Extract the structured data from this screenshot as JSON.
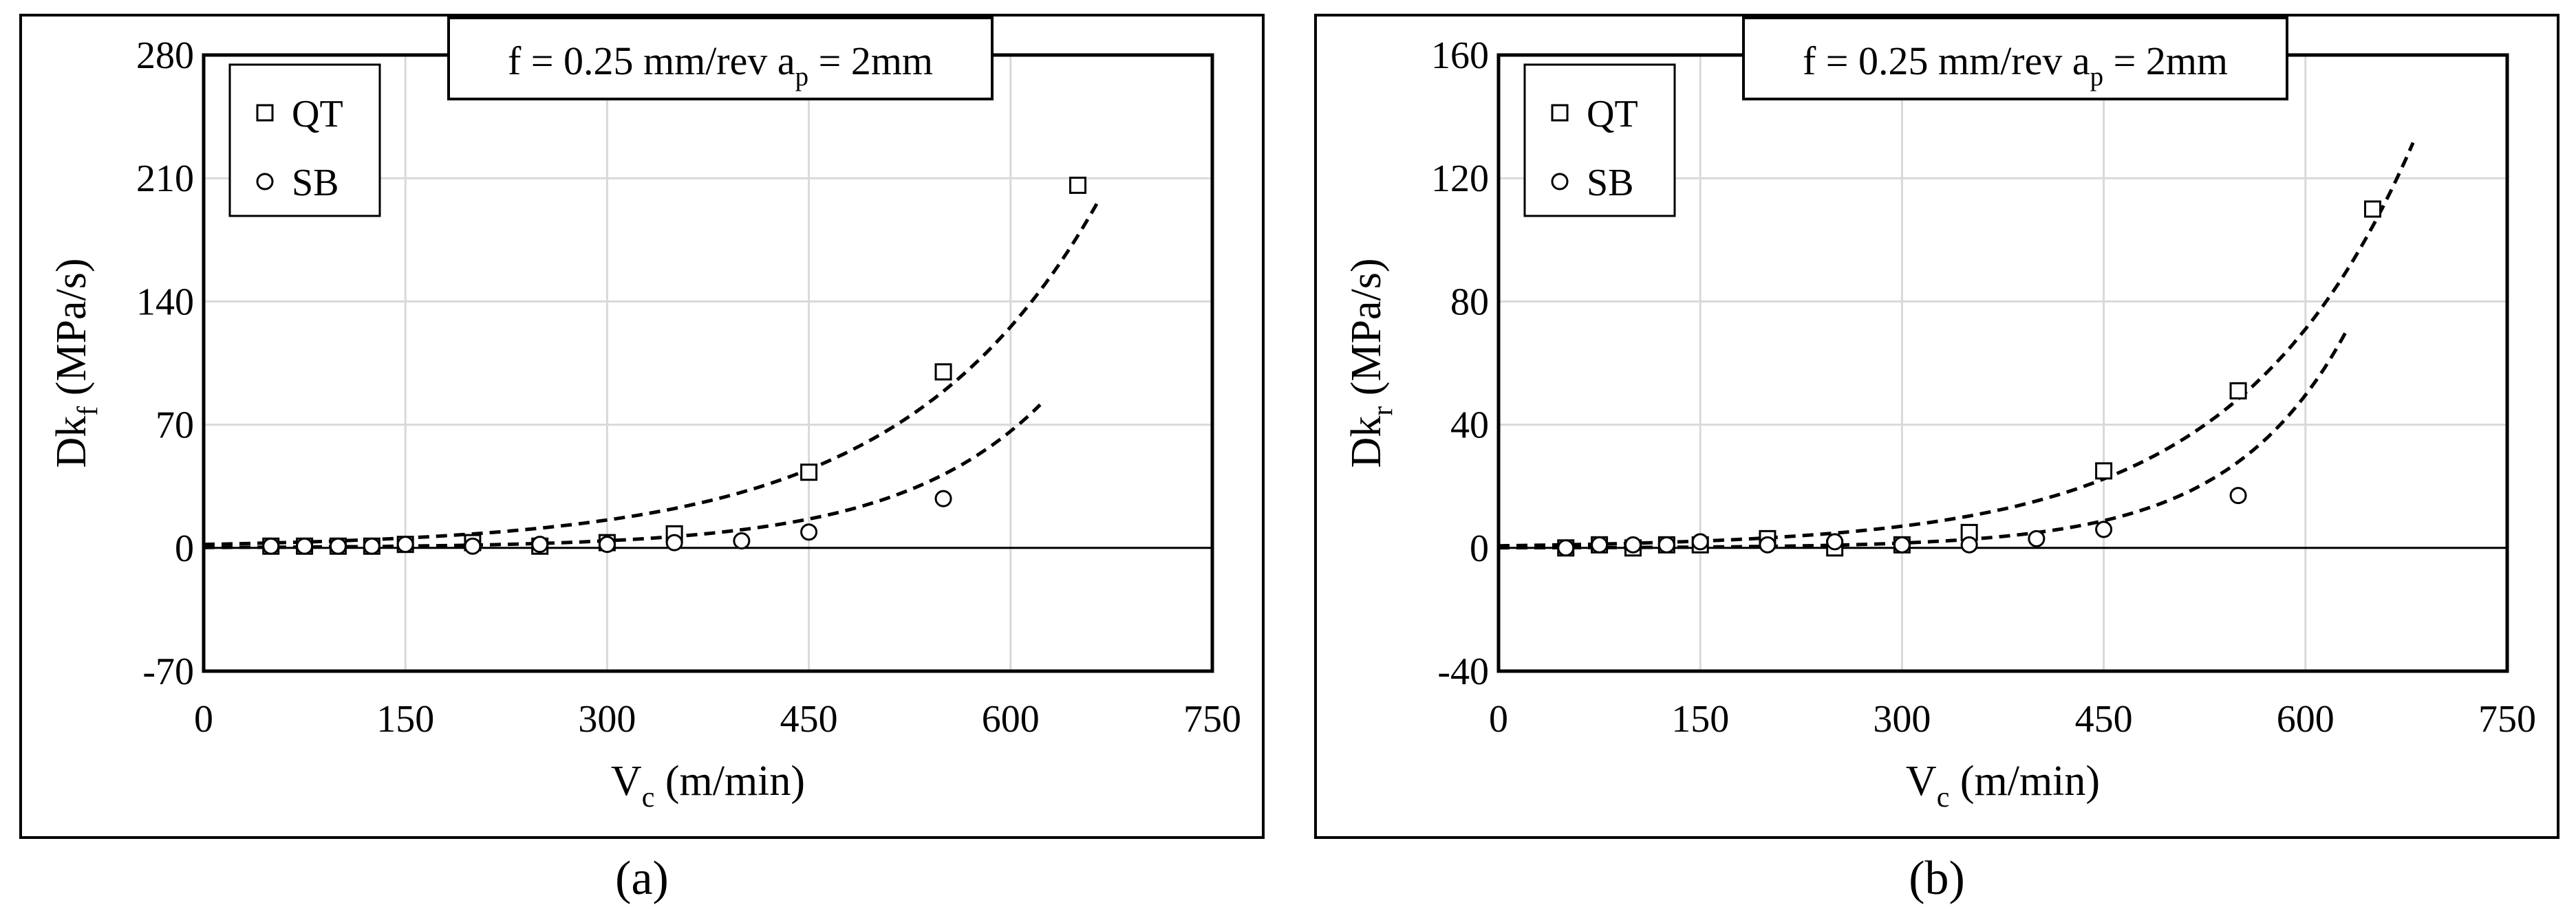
{
  "captions": [
    "(a)",
    "(b)"
  ],
  "chart_data": [
    {
      "type": "scatter",
      "title": "f = 0.25 mm/rev a",
      "title_sub": "p",
      "title_tail": " = 2mm",
      "xlabel": "V",
      "xlabel_sub": "c",
      "xlabel_tail": " (m/min)",
      "ylabel": "Dk",
      "ylabel_sub": "f",
      "ylabel_tail": " (MPa/s)",
      "xlim": [
        0,
        750
      ],
      "ylim": [
        -70,
        280
      ],
      "xticks": [
        "0",
        "150",
        "300",
        "450",
        "600",
        "750"
      ],
      "xtick_values": [
        0,
        150,
        300,
        450,
        600,
        750
      ],
      "yticks": [
        "280",
        "210",
        "140",
        "70",
        "0",
        "-70"
      ],
      "ytick_values": [
        280,
        210,
        140,
        70,
        0,
        -70
      ],
      "grid": true,
      "legend_position": "top-left",
      "series": [
        {
          "name": "QT",
          "marker": "square",
          "points": [
            [
              50,
              1
            ],
            [
              75,
              1
            ],
            [
              100,
              1
            ],
            [
              125,
              1
            ],
            [
              150,
              2
            ],
            [
              200,
              3
            ],
            [
              250,
              1
            ],
            [
              300,
              3
            ],
            [
              350,
              8
            ],
            [
              450,
              43
            ],
            [
              550,
              100
            ],
            [
              650,
              206
            ]
          ],
          "trend": {
            "a": 2.0,
            "b": 0.0069,
            "x0": 0,
            "x1": 665
          }
        },
        {
          "name": "SB",
          "marker": "circle",
          "points": [
            [
              50,
              1
            ],
            [
              75,
              1
            ],
            [
              100,
              1
            ],
            [
              125,
              1
            ],
            [
              150,
              2
            ],
            [
              200,
              1
            ],
            [
              250,
              2
            ],
            [
              300,
              2
            ],
            [
              350,
              3
            ],
            [
              400,
              4
            ],
            [
              450,
              9
            ],
            [
              550,
              28
            ]
          ],
          "trend": {
            "a": 0.25,
            "b": 0.0093,
            "x0": 0,
            "x1": 622
          }
        }
      ]
    },
    {
      "type": "scatter",
      "title": "f = 0.25 mm/rev a",
      "title_sub": "p",
      "title_tail": " = 2mm",
      "xlabel": "V",
      "xlabel_sub": "c",
      "xlabel_tail": " (m/min)",
      "ylabel": "Dk",
      "ylabel_sub": "r",
      "ylabel_tail": " (MPa/s)",
      "xlim": [
        0,
        750
      ],
      "ylim": [
        -40,
        160
      ],
      "xticks": [
        "0",
        "150",
        "300",
        "450",
        "600",
        "750"
      ],
      "xtick_values": [
        0,
        150,
        300,
        450,
        600,
        750
      ],
      "yticks": [
        "160",
        "120",
        "80",
        "40",
        "0",
        "-40"
      ],
      "ytick_values": [
        160,
        120,
        80,
        40,
        0,
        -40
      ],
      "grid": true,
      "legend_position": "top-left",
      "series": [
        {
          "name": "QT",
          "marker": "square",
          "points": [
            [
              50,
              0
            ],
            [
              75,
              1
            ],
            [
              100,
              0
            ],
            [
              125,
              1
            ],
            [
              150,
              1
            ],
            [
              200,
              3
            ],
            [
              250,
              0
            ],
            [
              300,
              1
            ],
            [
              350,
              5
            ],
            [
              450,
              25
            ],
            [
              550,
              51
            ],
            [
              650,
              110
            ]
          ],
          "trend": {
            "a": 0.7,
            "b": 0.0077,
            "x0": 0,
            "x1": 680
          }
        },
        {
          "name": "SB",
          "marker": "circle",
          "points": [
            [
              50,
              0
            ],
            [
              75,
              1
            ],
            [
              100,
              1
            ],
            [
              125,
              1
            ],
            [
              150,
              2
            ],
            [
              200,
              1
            ],
            [
              250,
              2
            ],
            [
              300,
              1
            ],
            [
              350,
              1
            ],
            [
              400,
              3
            ],
            [
              450,
              6
            ],
            [
              550,
              17
            ]
          ],
          "trend": {
            "a": 0.05,
            "b": 0.0115,
            "x0": 0,
            "x1": 630
          }
        }
      ]
    }
  ]
}
